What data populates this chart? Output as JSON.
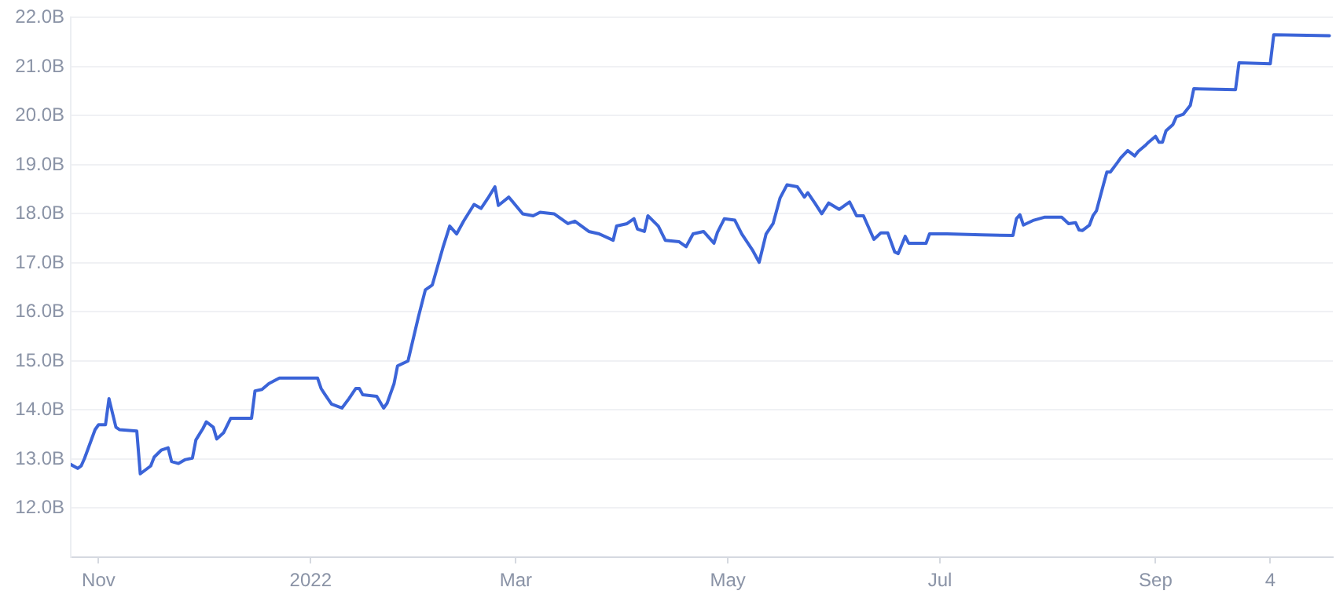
{
  "chart_data": {
    "type": "line",
    "x": [
      "2021-10-24",
      "2021-10-26",
      "2021-10-27",
      "2021-10-28",
      "2021-10-31",
      "2021-11-01",
      "2021-11-03",
      "2021-11-04",
      "2021-11-06",
      "2021-11-07",
      "2021-11-12",
      "2021-11-13",
      "2021-11-16",
      "2021-11-17",
      "2021-11-19",
      "2021-11-21",
      "2021-11-22",
      "2021-11-24",
      "2021-11-26",
      "2021-11-28",
      "2021-11-29",
      "2021-12-01",
      "2021-12-02",
      "2021-12-04",
      "2021-12-05",
      "2021-12-07",
      "2021-12-09",
      "2021-12-15",
      "2021-12-16",
      "2021-12-18",
      "2021-12-20",
      "2021-12-23",
      "2021-12-29",
      "2022-01-03",
      "2022-01-04",
      "2022-01-05",
      "2022-01-07",
      "2022-01-10",
      "2022-01-12",
      "2022-01-14",
      "2022-01-15",
      "2022-01-16",
      "2022-01-20",
      "2022-01-22",
      "2022-01-23",
      "2022-01-25",
      "2022-01-26",
      "2022-01-29",
      "2022-02-01",
      "2022-02-03",
      "2022-02-05",
      "2022-02-08",
      "2022-02-10",
      "2022-02-12",
      "2022-02-14",
      "2022-02-17",
      "2022-02-19",
      "2022-02-21",
      "2022-02-23",
      "2022-02-24",
      "2022-02-27",
      "2022-03-03",
      "2022-03-06",
      "2022-03-08",
      "2022-03-12",
      "2022-03-16",
      "2022-03-18",
      "2022-03-22",
      "2022-03-25",
      "2022-03-29",
      "2022-03-30",
      "2022-04-02",
      "2022-04-04",
      "2022-04-05",
      "2022-04-07",
      "2022-04-08",
      "2022-04-11",
      "2022-04-13",
      "2022-04-17",
      "2022-04-19",
      "2022-04-21",
      "2022-04-24",
      "2022-04-27",
      "2022-04-28",
      "2022-04-30",
      "2022-05-03",
      "2022-05-05",
      "2022-05-08",
      "2022-05-10",
      "2022-05-12",
      "2022-05-14",
      "2022-05-16",
      "2022-05-18",
      "2022-05-21",
      "2022-05-23",
      "2022-05-24",
      "2022-05-26",
      "2022-05-28",
      "2022-05-30",
      "2022-06-02",
      "2022-06-05",
      "2022-06-07",
      "2022-06-09",
      "2022-06-12",
      "2022-06-14",
      "2022-06-16",
      "2022-06-18",
      "2022-06-19",
      "2022-06-21",
      "2022-06-22",
      "2022-06-27",
      "2022-06-28",
      "2022-07-03",
      "2022-07-13",
      "2022-07-22",
      "2022-07-23",
      "2022-07-24",
      "2022-07-25",
      "2022-07-28",
      "2022-07-31",
      "2022-08-05",
      "2022-08-07",
      "2022-08-09",
      "2022-08-10",
      "2022-08-11",
      "2022-08-13",
      "2022-08-14",
      "2022-08-15",
      "2022-08-17",
      "2022-08-18",
      "2022-08-19",
      "2022-08-21",
      "2022-08-22",
      "2022-08-24",
      "2022-08-26",
      "2022-08-27",
      "2022-08-29",
      "2022-08-30",
      "2022-09-01",
      "2022-09-02",
      "2022-09-03",
      "2022-09-04",
      "2022-09-06",
      "2022-09-07",
      "2022-09-09",
      "2022-09-11",
      "2022-09-12",
      "2022-09-24",
      "2022-09-25",
      "2022-10-04",
      "2022-10-05",
      "2022-10-21"
    ],
    "series": [
      {
        "color": "#3b64d8",
        "values": [
          12.89,
          12.81,
          12.86,
          13.02,
          13.6,
          13.7,
          13.7,
          14.23,
          13.65,
          13.6,
          13.57,
          12.7,
          12.86,
          13.04,
          13.18,
          13.23,
          12.95,
          12.91,
          12.99,
          13.02,
          13.39,
          13.62,
          13.76,
          13.65,
          13.41,
          13.54,
          13.83,
          13.83,
          14.39,
          14.42,
          14.54,
          14.65,
          14.65,
          14.65,
          14.44,
          14.33,
          14.12,
          14.04,
          14.23,
          14.44,
          14.44,
          14.31,
          14.28,
          14.04,
          14.14,
          14.54,
          14.9,
          15.0,
          15.9,
          16.45,
          16.55,
          17.3,
          17.75,
          17.59,
          17.85,
          18.19,
          18.11,
          18.32,
          18.55,
          18.17,
          18.34,
          18.0,
          17.96,
          18.03,
          18.0,
          17.8,
          17.85,
          17.64,
          17.59,
          17.46,
          17.75,
          17.8,
          17.9,
          17.69,
          17.64,
          17.96,
          17.75,
          17.46,
          17.43,
          17.33,
          17.59,
          17.64,
          17.4,
          17.62,
          17.9,
          17.87,
          17.59,
          17.27,
          17.01,
          17.59,
          17.8,
          18.32,
          18.59,
          18.55,
          18.34,
          18.43,
          18.22,
          18.0,
          18.22,
          18.09,
          18.24,
          17.96,
          17.96,
          17.48,
          17.61,
          17.61,
          17.22,
          17.19,
          17.54,
          17.4,
          17.4,
          17.59,
          17.59,
          17.57,
          17.56,
          17.9,
          17.98,
          17.77,
          17.87,
          17.93,
          17.93,
          17.8,
          17.82,
          17.67,
          17.66,
          17.77,
          17.96,
          18.06,
          18.59,
          18.85,
          18.85,
          19.04,
          19.14,
          19.29,
          19.18,
          19.27,
          19.39,
          19.46,
          19.58,
          19.46,
          19.46,
          19.69,
          19.82,
          19.98,
          20.03,
          20.21,
          20.55,
          20.53,
          21.08,
          21.06,
          21.65,
          21.63
        ]
      }
    ],
    "xlim": [
      "2021-10-24",
      "2022-10-22"
    ],
    "xticks": [
      {
        "value": "2021-11-01",
        "label": "Nov"
      },
      {
        "value": "2022-01-01",
        "label": "2022"
      },
      {
        "value": "2022-03-01",
        "label": "Mar"
      },
      {
        "value": "2022-05-01",
        "label": "May"
      },
      {
        "value": "2022-07-01",
        "label": "Jul"
      },
      {
        "value": "2022-09-01",
        "label": "Sep"
      },
      {
        "value": "2022-10-04",
        "label": "4"
      }
    ],
    "ylim": [
      11.0,
      22.0
    ],
    "yticks": [
      {
        "value": 12,
        "label": "12.0B"
      },
      {
        "value": 13,
        "label": "13.0B"
      },
      {
        "value": 14,
        "label": "14.0B"
      },
      {
        "value": 15,
        "label": "15.0B"
      },
      {
        "value": 16,
        "label": "16.0B"
      },
      {
        "value": 17,
        "label": "17.0B"
      },
      {
        "value": 18,
        "label": "18.0B"
      },
      {
        "value": 19,
        "label": "19.0B"
      },
      {
        "value": 20,
        "label": "20.0B"
      },
      {
        "value": 21,
        "label": "21.0B"
      },
      {
        "value": 22,
        "label": "22.0B"
      }
    ],
    "grid": "y",
    "legend": false,
    "marker": "none",
    "line_style": "solid"
  }
}
